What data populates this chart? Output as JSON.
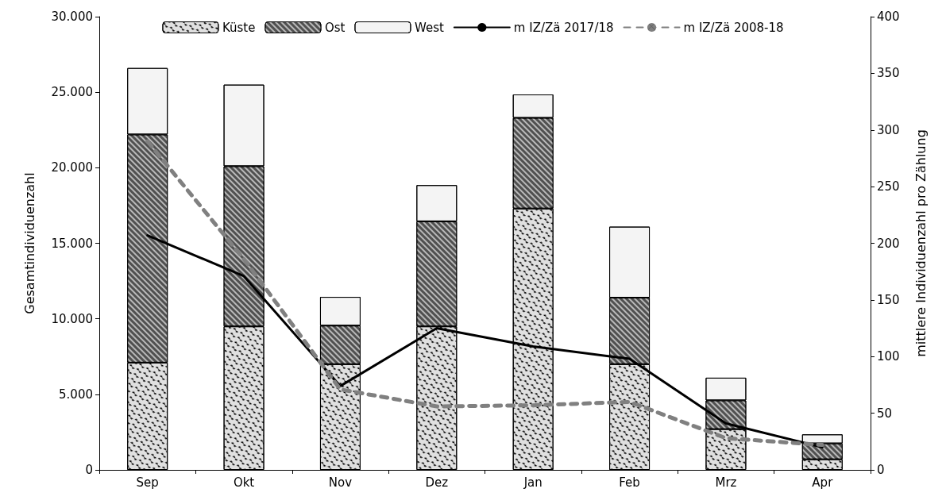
{
  "chart_data": {
    "type": "bar",
    "stacked": true,
    "categories": [
      "Sep",
      "Okt",
      "Nov",
      "Dez",
      "Jan",
      "Feb",
      "Mrz",
      "Apr"
    ],
    "ylabel": "Gesamtindividuenzahl",
    "y2label": "mittlere Individuenzahl pro Zählung",
    "ylim": [
      0,
      30000
    ],
    "yticks": [
      {
        "value": 0,
        "label": "0"
      },
      {
        "value": 5000,
        "label": "5.000"
      },
      {
        "value": 10000,
        "label": "10.000"
      },
      {
        "value": 15000,
        "label": "15.000"
      },
      {
        "value": 20000,
        "label": "20.000"
      },
      {
        "value": 25000,
        "label": "25.000"
      },
      {
        "value": 30000,
        "label": "30.000"
      }
    ],
    "y2lim": [
      0,
      400
    ],
    "y2ticks": [
      0,
      50,
      100,
      150,
      200,
      250,
      300,
      350,
      400
    ],
    "legend": "top",
    "grid": false,
    "series": [
      {
        "name": "Küste",
        "color": "#e0e0e0",
        "values": [
          7100,
          9500,
          7000,
          9500,
          17300,
          7000,
          2700,
          700
        ]
      },
      {
        "name": "Ost",
        "color": "#505050",
        "values": [
          15100,
          10600,
          2550,
          6950,
          6000,
          4400,
          1900,
          1050
        ]
      },
      {
        "name": "West",
        "color": "#f4f4f4",
        "values": [
          4400,
          5400,
          1900,
          2400,
          1550,
          4700,
          1500,
          600
        ]
      },
      {
        "name": "m IZ/Zä 2017/18",
        "type": "line",
        "axis": "y2",
        "color": "#000000",
        "line_style": "solid",
        "marker": "none",
        "values": [
          207,
          171,
          74,
          125,
          109,
          98,
          41,
          20
        ]
      },
      {
        "name": "m IZ/Zä 2008-18",
        "type": "line",
        "axis": "y2",
        "color": "#808080",
        "line_style": "dashed",
        "marker": "none",
        "values": [
          290,
          186,
          71,
          56,
          57,
          60,
          28,
          22
        ]
      }
    ]
  }
}
